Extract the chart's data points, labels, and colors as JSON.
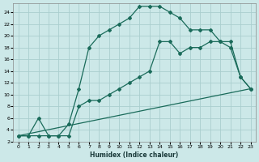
{
  "xlabel": "Humidex (Indice chaleur)",
  "bg_color": "#cce8e8",
  "grid_color": "#aacece",
  "line_color": "#1a6b5a",
  "xlim": [
    -0.5,
    23.5
  ],
  "ylim": [
    2,
    25.5
  ],
  "xticks": [
    0,
    1,
    2,
    3,
    4,
    5,
    6,
    7,
    8,
    9,
    10,
    11,
    12,
    13,
    14,
    15,
    16,
    17,
    18,
    19,
    20,
    21,
    22,
    23
  ],
  "yticks": [
    2,
    4,
    6,
    8,
    10,
    12,
    14,
    16,
    18,
    20,
    22,
    24
  ],
  "line1_x": [
    0,
    1,
    2,
    3,
    4,
    5,
    6,
    7,
    8,
    9,
    10,
    11,
    12,
    13,
    14,
    15,
    16,
    17,
    18,
    19,
    20,
    21,
    22,
    23
  ],
  "line1_y": [
    3,
    3,
    6,
    3,
    3,
    5,
    11,
    18,
    20,
    21,
    22,
    23,
    25,
    25,
    25,
    24,
    23,
    21,
    21,
    21,
    19,
    18,
    13,
    11
  ],
  "line2_x": [
    0,
    1,
    2,
    3,
    4,
    5,
    6,
    7,
    8,
    9,
    10,
    11,
    12,
    13,
    14,
    15,
    16,
    17,
    18,
    19,
    20,
    21,
    22,
    23
  ],
  "line2_y": [
    3,
    3,
    3,
    3,
    3,
    3,
    8,
    9,
    9,
    10,
    11,
    12,
    13,
    14,
    19,
    19,
    17,
    18,
    18,
    19,
    19,
    19,
    13,
    11
  ],
  "line3_x": [
    0,
    23
  ],
  "line3_y": [
    3,
    11
  ],
  "markersize": 2.0,
  "linewidth": 0.9
}
